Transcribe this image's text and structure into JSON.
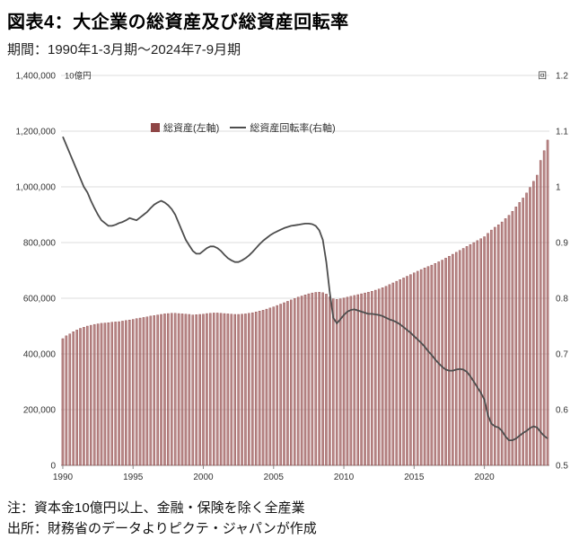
{
  "page": {
    "title": "図表4：大企業の総資産及び総資産回転率",
    "subtitle": "期間：1990年1-3月期～2024年7-9月期",
    "note1": "注：資本金10億円以上、金融・保険を除く全産業",
    "note2": "出所：財務省のデータよりピクテ・ジャパンが作成"
  },
  "chart_data": {
    "type": "bar",
    "subtype": "combo-bar-line",
    "x_unit": "quarter",
    "x_start": "1990Q1",
    "x_end": "2024Q3",
    "x_tick_labels": [
      "1990",
      "1995",
      "2000",
      "2005",
      "2010",
      "2015",
      "2020"
    ],
    "x_tick_quarter_index": [
      0,
      20,
      40,
      60,
      80,
      100,
      120
    ],
    "grid": "horizontal",
    "legend_position": "top-center",
    "left_axis": {
      "label": "10億円",
      "min": 0,
      "max": 1400000,
      "step": 200000
    },
    "right_axis": {
      "label": "回",
      "min": 0.5,
      "max": 1.2,
      "step": 0.1
    },
    "left_axis_ticks": [
      "0",
      "200,000",
      "400,000",
      "600,000",
      "800,000",
      "1,000,000",
      "1,200,000",
      "1,400,000"
    ],
    "right_axis_ticks": [
      "0.5",
      "0.6",
      "0.7",
      "0.8",
      "0.9",
      "1",
      "1.1",
      "1.2"
    ],
    "series": [
      {
        "name": "総資産(左軸)",
        "type": "bar",
        "axis": "left",
        "color": "#a06060",
        "edge_color": "#8f4646",
        "values": [
          455000,
          465000,
          472000,
          480000,
          486000,
          492000,
          496000,
          500000,
          503000,
          506000,
          508000,
          510000,
          511000,
          512000,
          514000,
          515000,
          516000,
          518000,
          520000,
          522000,
          524000,
          527000,
          529000,
          531000,
          533000,
          536000,
          538000,
          540000,
          542000,
          544000,
          545000,
          546000,
          546000,
          545000,
          544000,
          543000,
          542000,
          540000,
          541000,
          542000,
          543000,
          545000,
          546000,
          547000,
          547000,
          546000,
          545000,
          544000,
          543000,
          542000,
          542000,
          543000,
          544000,
          546000,
          548000,
          551000,
          554000,
          557000,
          561000,
          565000,
          569000,
          574000,
          579000,
          584000,
          589000,
          594000,
          599000,
          604000,
          608000,
          612000,
          616000,
          619000,
          621000,
          622000,
          620000,
          615000,
          605000,
          598000,
          596000,
          598000,
          601000,
          604000,
          607000,
          610000,
          613000,
          616000,
          619000,
          622000,
          625000,
          629000,
          633000,
          638000,
          643000,
          649000,
          655000,
          661000,
          667000,
          673000,
          679000,
          685000,
          691000,
          697000,
          703000,
          709000,
          714000,
          719000,
          725000,
          731000,
          737000,
          744000,
          751000,
          758000,
          765000,
          772000,
          779000,
          786000,
          793000,
          800000,
          807000,
          814000,
          821000,
          833000,
          845000,
          855000,
          864000,
          874000,
          886000,
          898000,
          912000,
          928000,
          944000,
          960000,
          978000,
          998000,
          1020000,
          1042000,
          1095000,
          1130000,
          1168000
        ]
      },
      {
        "name": "総資産回転率(右軸)",
        "type": "line",
        "axis": "right",
        "color": "#4d4d4d",
        "values": [
          1.09,
          1.075,
          1.06,
          1.045,
          1.03,
          1.015,
          1.0,
          0.99,
          0.975,
          0.962,
          0.95,
          0.94,
          0.935,
          0.93,
          0.93,
          0.932,
          0.935,
          0.937,
          0.94,
          0.944,
          0.942,
          0.94,
          0.945,
          0.95,
          0.955,
          0.962,
          0.968,
          0.972,
          0.975,
          0.972,
          0.967,
          0.96,
          0.95,
          0.935,
          0.92,
          0.905,
          0.895,
          0.885,
          0.88,
          0.88,
          0.885,
          0.89,
          0.893,
          0.893,
          0.89,
          0.885,
          0.878,
          0.872,
          0.868,
          0.865,
          0.865,
          0.868,
          0.872,
          0.877,
          0.883,
          0.89,
          0.897,
          0.903,
          0.908,
          0.913,
          0.917,
          0.92,
          0.923,
          0.926,
          0.928,
          0.93,
          0.931,
          0.932,
          0.933,
          0.934,
          0.934,
          0.933,
          0.93,
          0.922,
          0.905,
          0.865,
          0.81,
          0.765,
          0.755,
          0.762,
          0.77,
          0.776,
          0.779,
          0.78,
          0.778,
          0.776,
          0.774,
          0.772,
          0.772,
          0.771,
          0.77,
          0.768,
          0.765,
          0.762,
          0.76,
          0.757,
          0.753,
          0.748,
          0.743,
          0.738,
          0.732,
          0.726,
          0.72,
          0.713,
          0.705,
          0.698,
          0.69,
          0.683,
          0.677,
          0.672,
          0.67,
          0.67,
          0.672,
          0.673,
          0.672,
          0.668,
          0.66,
          0.65,
          0.64,
          0.63,
          0.618,
          0.59,
          0.575,
          0.57,
          0.568,
          0.562,
          0.552,
          0.545,
          0.545,
          0.548,
          0.553,
          0.558,
          0.562,
          0.567,
          0.57,
          0.568,
          0.56,
          0.553,
          0.548
        ]
      }
    ]
  }
}
